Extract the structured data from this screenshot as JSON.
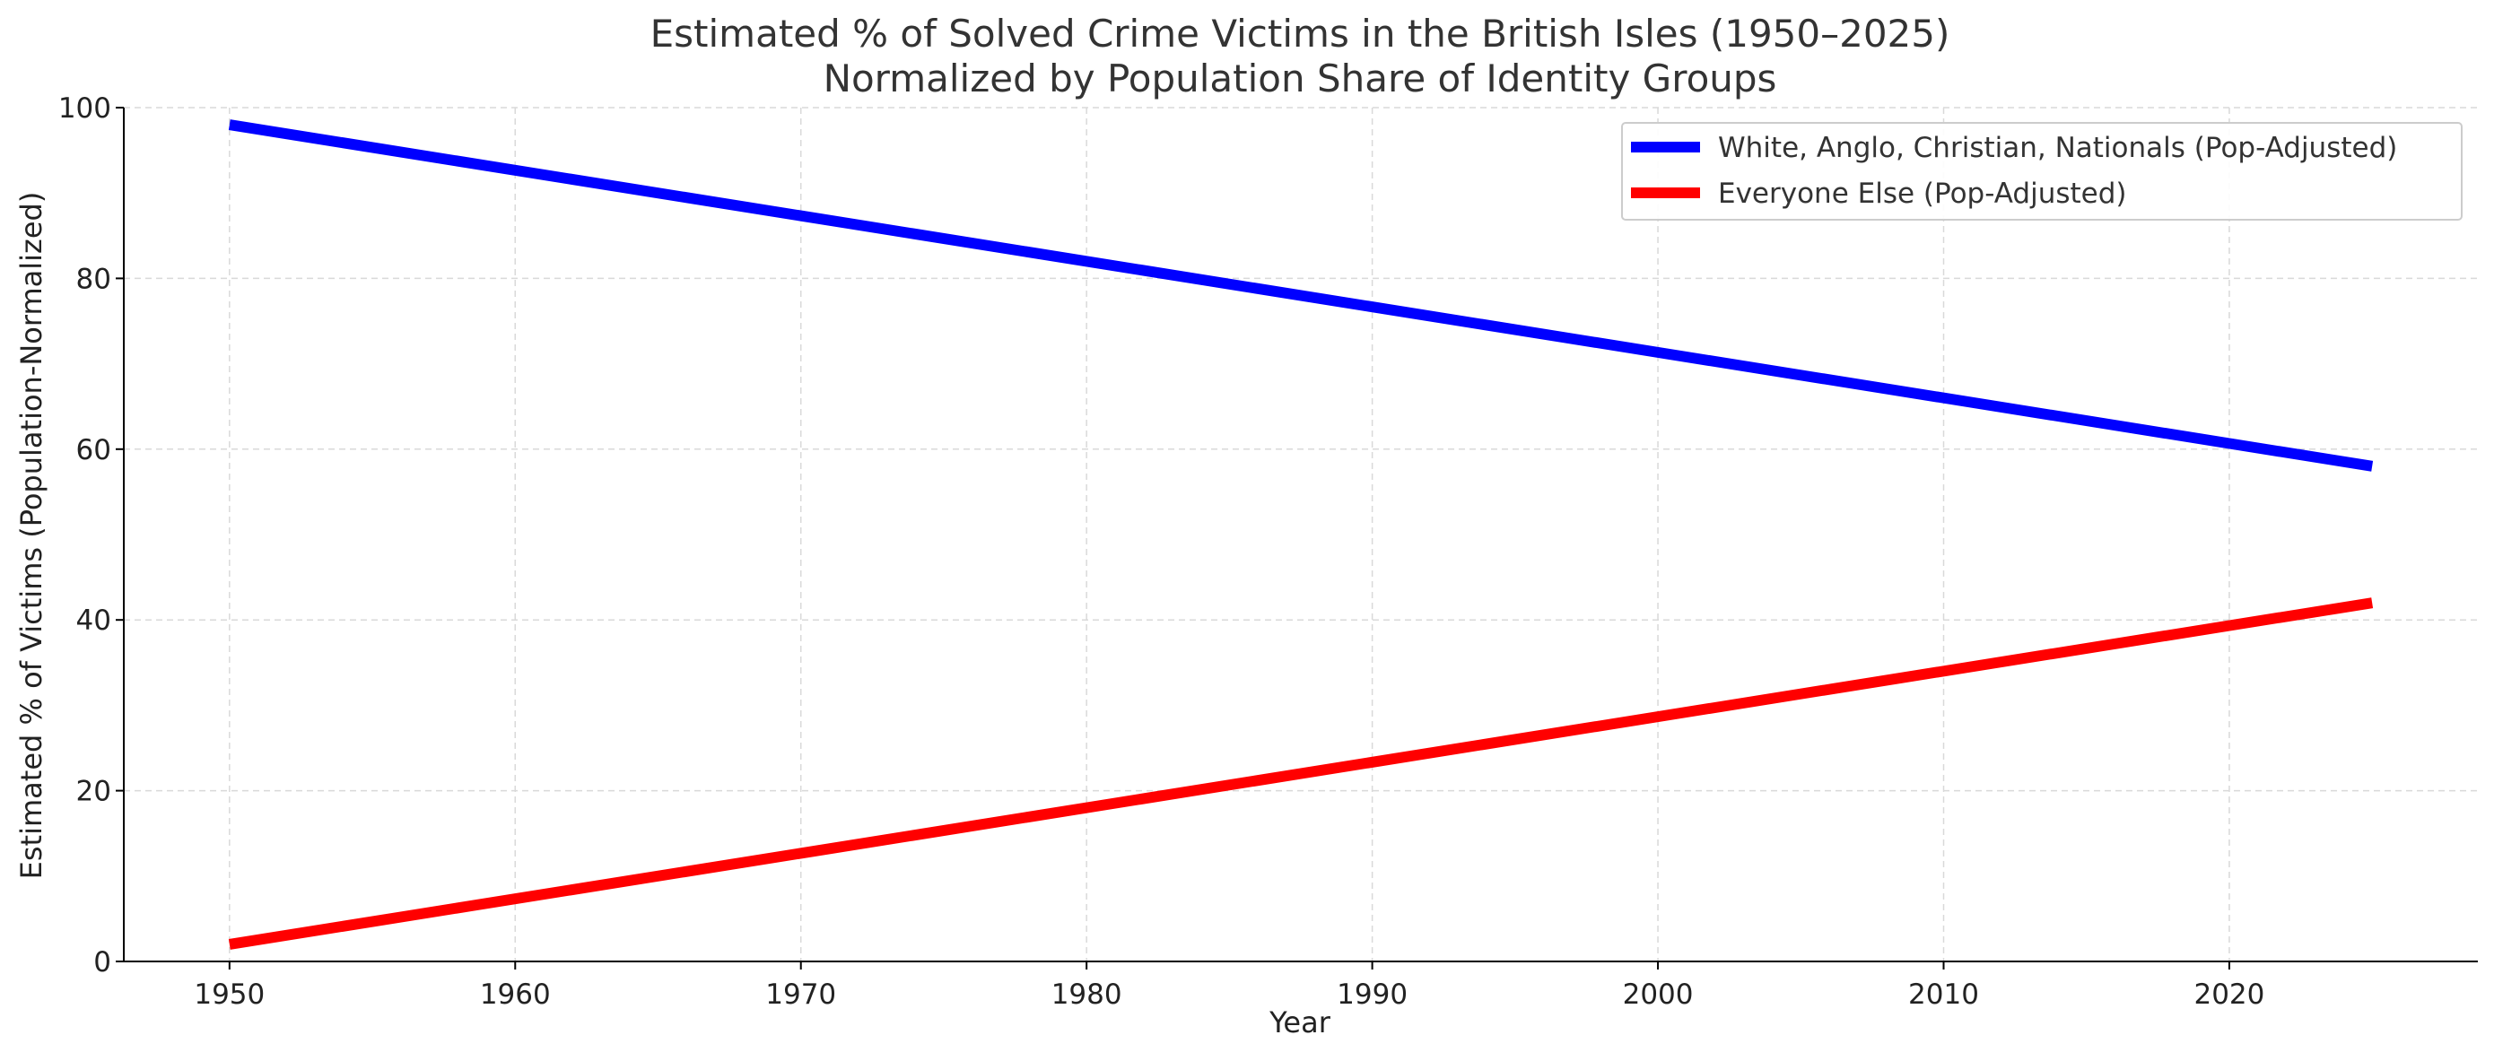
{
  "chart_data": {
    "type": "line",
    "title_line1": "Estimated % of Solved Crime Victims in the British Isles (1950–2025)",
    "title_line2": "Normalized by Population Share of Identity Groups",
    "xlabel": "Year",
    "ylabel": "Estimated % of Victims (Population-Normalized)",
    "xlim": [
      1946.3,
      2028.7
    ],
    "ylim": [
      0,
      100
    ],
    "xticks": [
      1950,
      1960,
      1970,
      1980,
      1990,
      2000,
      2010,
      2020
    ],
    "yticks": [
      0,
      20,
      40,
      60,
      80,
      100
    ],
    "grid": true,
    "legend_position": "top-right",
    "series": [
      {
        "name": "White, Anglo, Christian, Nationals (Pop-Adjusted)",
        "color": "#0000ff",
        "x": [
          1950,
          2025
        ],
        "y": [
          98,
          58
        ]
      },
      {
        "name": "Everyone Else (Pop-Adjusted)",
        "color": "#ff0000",
        "x": [
          1950,
          2025
        ],
        "y": [
          2,
          42
        ]
      }
    ]
  }
}
